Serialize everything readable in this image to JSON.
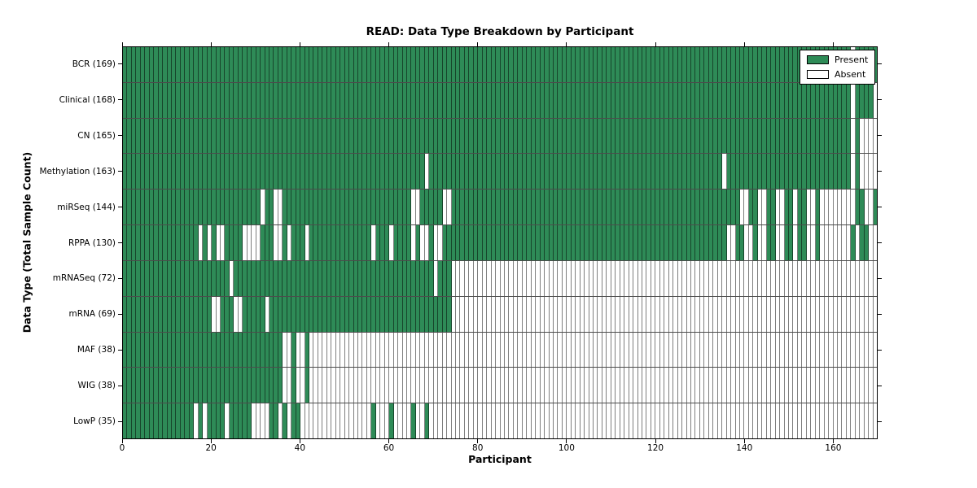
{
  "chart_data": {
    "type": "heatmap",
    "title": "READ: Data Type Breakdown by Participant",
    "xlabel": "Participant",
    "ylabel": "Data Type (Total Sample Count)",
    "x_range": [
      0,
      170
    ],
    "x_ticks": [
      0,
      20,
      40,
      60,
      80,
      100,
      120,
      140,
      160
    ],
    "grid": false,
    "legend_position": "upper right",
    "legend": [
      {
        "label": "Present",
        "color": "#2e8b57"
      },
      {
        "label": "Absent",
        "color": "#ffffff"
      }
    ],
    "colors": {
      "present": "#2e8b57",
      "absent": "#ffffff"
    },
    "rows": [
      {
        "label": "BCR (169)",
        "name": "bcr",
        "count": 169,
        "present_ranges": [
          [
            0,
            163
          ],
          [
            165,
            169
          ]
        ]
      },
      {
        "label": "Clinical (168)",
        "name": "clinical",
        "count": 168,
        "present_ranges": [
          [
            0,
            163
          ],
          [
            165,
            168
          ]
        ]
      },
      {
        "label": "CN (165)",
        "name": "cn",
        "count": 165,
        "present_ranges": [
          [
            0,
            163
          ],
          [
            165,
            165
          ]
        ]
      },
      {
        "label": "Methylation (163)",
        "name": "methylation",
        "count": 163,
        "present_ranges": [
          [
            0,
            67
          ],
          [
            69,
            134
          ],
          [
            136,
            163
          ],
          [
            165,
            165
          ]
        ]
      },
      {
        "label": "miRSeq (144)",
        "name": "mirseq",
        "count": 144,
        "present_ranges": [
          [
            0,
            30
          ],
          [
            32,
            33
          ],
          [
            36,
            64
          ],
          [
            67,
            71
          ],
          [
            74,
            138
          ],
          [
            141,
            142
          ],
          [
            145,
            146
          ],
          [
            149,
            150
          ],
          [
            152,
            153
          ],
          [
            156,
            156
          ],
          [
            165,
            166
          ],
          [
            169,
            169
          ]
        ]
      },
      {
        "label": "RPPA (130)",
        "name": "rppa",
        "count": 130,
        "present_ranges": [
          [
            0,
            16
          ],
          [
            18,
            18
          ],
          [
            20,
            20
          ],
          [
            23,
            26
          ],
          [
            31,
            33
          ],
          [
            36,
            36
          ],
          [
            38,
            40
          ],
          [
            42,
            55
          ],
          [
            57,
            59
          ],
          [
            61,
            64
          ],
          [
            66,
            66
          ],
          [
            69,
            69
          ],
          [
            72,
            135
          ],
          [
            138,
            139
          ],
          [
            142,
            142
          ],
          [
            145,
            146
          ],
          [
            149,
            150
          ],
          [
            152,
            153
          ],
          [
            156,
            156
          ],
          [
            164,
            164
          ],
          [
            166,
            167
          ]
        ]
      },
      {
        "label": "mRNASeq (72)",
        "name": "mrnaseq",
        "count": 72,
        "present_ranges": [
          [
            0,
            23
          ],
          [
            25,
            69
          ],
          [
            71,
            73
          ]
        ]
      },
      {
        "label": "mRNA (69)",
        "name": "mrna",
        "count": 69,
        "present_ranges": [
          [
            0,
            19
          ],
          [
            22,
            24
          ],
          [
            27,
            31
          ],
          [
            33,
            73
          ]
        ]
      },
      {
        "label": "MAF (38)",
        "name": "maf",
        "count": 38,
        "present_ranges": [
          [
            0,
            35
          ],
          [
            38,
            38
          ],
          [
            41,
            41
          ]
        ]
      },
      {
        "label": "WIG (38)",
        "name": "wig",
        "count": 38,
        "present_ranges": [
          [
            0,
            35
          ],
          [
            38,
            38
          ],
          [
            41,
            41
          ]
        ]
      },
      {
        "label": "LowP (35)",
        "name": "lowp",
        "count": 35,
        "present_ranges": [
          [
            0,
            15
          ],
          [
            17,
            17
          ],
          [
            19,
            22
          ],
          [
            24,
            28
          ],
          [
            33,
            34
          ],
          [
            36,
            36
          ],
          [
            38,
            39
          ],
          [
            56,
            56
          ],
          [
            60,
            60
          ],
          [
            65,
            65
          ],
          [
            68,
            68
          ]
        ]
      }
    ]
  }
}
